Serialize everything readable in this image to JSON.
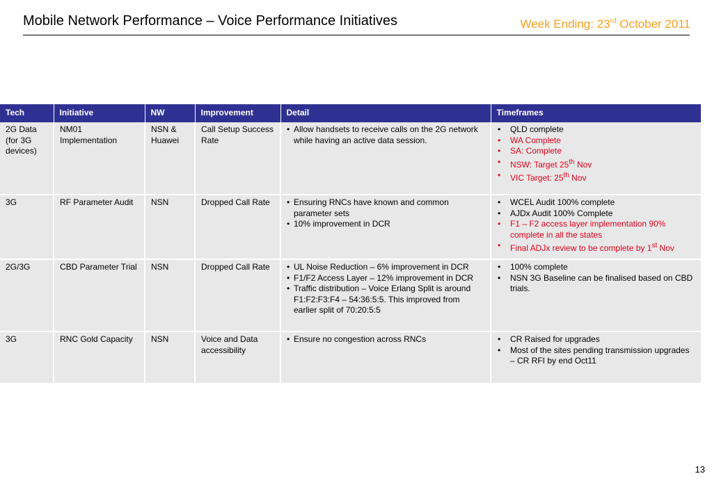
{
  "header": {
    "title": "Mobile Network Performance – Voice Performance Initiatives",
    "week_prefix": "Week Ending: 23",
    "week_sup": "rd",
    "week_suffix": " October 2011"
  },
  "table": {
    "headers": [
      "Tech",
      "Initiative",
      "NW",
      "Improvement",
      "Detail",
      "Timeframes"
    ],
    "rows": [
      {
        "tech": "2G Data (for 3G devices)",
        "initiative": "NM01 Implementation",
        "nw": "NSN & Huawei",
        "improvement": "Call Setup Success Rate",
        "detail": [
          "Allow handsets to receive calls on the 2G network while having an active data session."
        ],
        "timeframes": [
          {
            "text": "QLD complete",
            "status": "normal"
          },
          {
            "text": "WA Complete",
            "status": "red"
          },
          {
            "text": "SA: Complete",
            "status": "red"
          },
          {
            "text": "NSW: Target 25",
            "sup": "th",
            "after": " Nov",
            "status": "red"
          },
          {
            "text": "VIC Target: 25",
            "sup": "th",
            "after": " Nov",
            "status": "red"
          }
        ]
      },
      {
        "tech": "3G",
        "initiative": "RF Parameter Audit",
        "nw": "NSN",
        "improvement": "Dropped Call Rate",
        "detail": [
          "Ensuring RNCs have known and common parameter sets",
          "10% improvement in DCR"
        ],
        "timeframes": [
          {
            "text": "WCEL Audit 100% complete",
            "status": "normal"
          },
          {
            "text": "AJDx Audit 100% Complete",
            "status": "normal"
          },
          {
            "text": "F1 – F2 access layer implementation 90% complete in all the states",
            "status": "red"
          },
          {
            "text": "Final ADJx review to be complete by 1",
            "sup": "st",
            "after": " Nov",
            "status": "red"
          }
        ]
      },
      {
        "tech": "2G/3G",
        "initiative": "CBD Parameter Trial",
        "nw": "NSN",
        "improvement": "Dropped Call Rate",
        "detail": [
          "UL Noise Reduction – 6% improvement in DCR",
          "F1/F2 Access Layer – 12% improvement in DCR",
          "Traffic distribution – Voice Erlang Split is around F1:F2:F3:F4 – 54:36:5:5.  This improved from earlier split of 70:20:5:5"
        ],
        "timeframes": [
          {
            "text": "100% complete",
            "status": "normal"
          },
          {
            "text": "NSN 3G Baseline can be finalised based on CBD trials.",
            "status": "normal"
          }
        ]
      },
      {
        "tech": "3G",
        "initiative": "RNC Gold Capacity",
        "nw": "NSN",
        "improvement": "Voice and Data accessibility",
        "detail": [
          "Ensure no congestion across RNCs"
        ],
        "timeframes": [
          {
            "text": "CR Raised for upgrades",
            "status": "normal"
          },
          {
            "text": "Most of the sites pending transmission upgrades – CR RFI by end Oct11",
            "status": "normal"
          }
        ]
      }
    ]
  },
  "colors": {
    "header_bg": "#2E3192",
    "cell_bg": "#E8E8E8",
    "week_text": "#F7A020",
    "status_red": "#E0001B"
  },
  "footer": {
    "page_number": "13"
  }
}
